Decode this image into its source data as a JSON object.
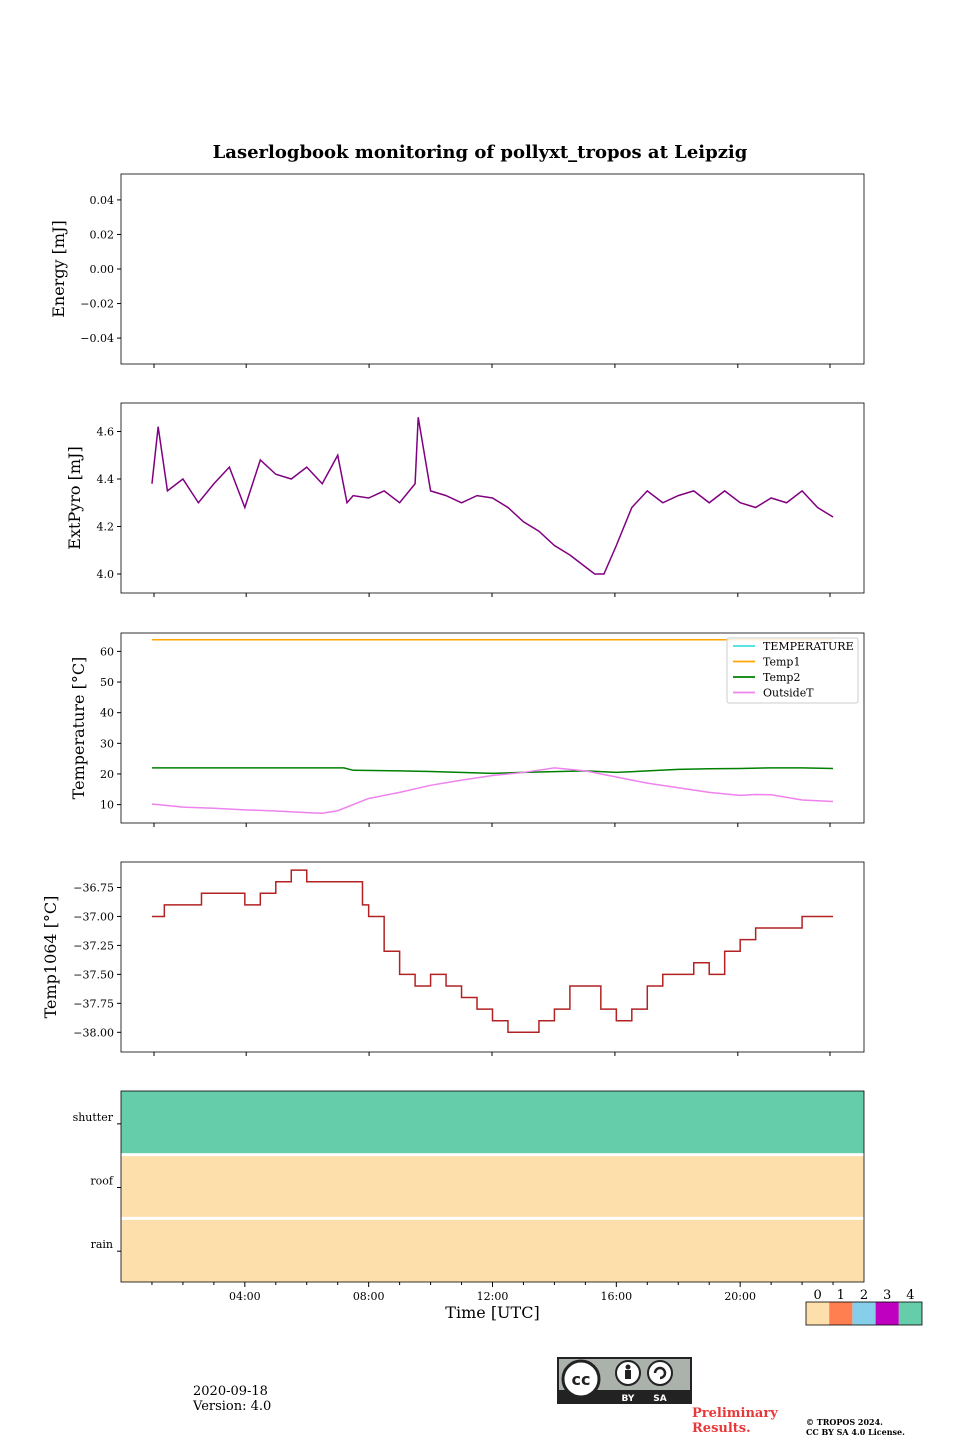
{
  "title": "Laserlogbook monitoring of pollyxt_tropos at Leipzig",
  "footer": {
    "date": "2020-09-18",
    "version": "Version: 4.0",
    "preliminary_line1": "Preliminary",
    "preliminary_line2": "Results.",
    "copyright_line1": "© TROPOS 2024.",
    "copyright_line2": "CC BY SA 4.0 License.",
    "cc_by": "BY",
    "cc_sa": "SA"
  },
  "chart_data": [
    {
      "type": "line",
      "ylabel": "Energy [mJ]",
      "ylim": [
        -0.055,
        0.055
      ],
      "yticks": [
        0.04,
        0.02,
        0.0,
        -0.02,
        -0.04
      ],
      "ytick_labels": [
        "0.04",
        "0.02",
        "0.00",
        "−0.02",
        "−0.04"
      ],
      "series": []
    },
    {
      "type": "line",
      "ylabel": "ExtPyro [mJ]",
      "ylim": [
        3.92,
        4.72
      ],
      "yticks": [
        4.6,
        4.4,
        4.2,
        4.0
      ],
      "ytick_labels": [
        "4.6",
        "4.4",
        "4.2",
        "4.0"
      ],
      "series": [
        {
          "name": "ExtPyro",
          "color": "#800080",
          "x": [
            1.0,
            1.2,
            1.5,
            2.0,
            2.5,
            3.0,
            3.5,
            4.0,
            4.5,
            5.0,
            5.5,
            6.0,
            6.5,
            7.0,
            7.3,
            7.5,
            8.0,
            8.5,
            9.0,
            9.5,
            9.6,
            10.0,
            10.5,
            11.0,
            11.5,
            12.0,
            12.5,
            13.0,
            13.5,
            14.0,
            14.5,
            15.0,
            15.3,
            15.6,
            16.0,
            16.5,
            17.0,
            17.5,
            18.0,
            18.5,
            19.0,
            19.5,
            20.0,
            20.5,
            21.0,
            21.5,
            22.0,
            22.5,
            23.0
          ],
          "y": [
            4.38,
            4.62,
            4.35,
            4.4,
            4.3,
            4.38,
            4.45,
            4.28,
            4.48,
            4.42,
            4.4,
            4.45,
            4.38,
            4.5,
            4.3,
            4.33,
            4.32,
            4.35,
            4.3,
            4.38,
            4.66,
            4.35,
            4.33,
            4.3,
            4.33,
            4.32,
            4.28,
            4.22,
            4.18,
            4.12,
            4.08,
            4.03,
            4.0,
            4.0,
            4.12,
            4.28,
            4.35,
            4.3,
            4.33,
            4.35,
            4.3,
            4.35,
            4.3,
            4.28,
            4.32,
            4.3,
            4.35,
            4.28,
            4.24
          ]
        }
      ]
    },
    {
      "type": "line",
      "ylabel": "Temperature [°C]",
      "ylim": [
        4,
        66
      ],
      "yticks": [
        60,
        50,
        40,
        30,
        20,
        10
      ],
      "ytick_labels": [
        "60",
        "50",
        "40",
        "30",
        "20",
        "10"
      ],
      "legend": "top-right",
      "series": [
        {
          "name": "TEMPERATURE",
          "color": "#40e0e0",
          "x": [],
          "y": []
        },
        {
          "name": "Temp1",
          "color": "#ffa500",
          "x": [
            1.0,
            23.0
          ],
          "y": [
            63.8,
            63.8
          ]
        },
        {
          "name": "Temp2",
          "color": "#008000",
          "x": [
            1.0,
            3.0,
            5.0,
            7.2,
            7.5,
            9.0,
            10.0,
            12.0,
            13.0,
            15.0,
            16.0,
            17.0,
            18.0,
            19.0,
            20.0,
            21.0,
            22.0,
            23.0
          ],
          "y": [
            22.0,
            22.0,
            22.0,
            22.0,
            21.2,
            21.0,
            20.8,
            20.2,
            20.5,
            21.0,
            20.5,
            21.0,
            21.5,
            21.7,
            21.8,
            22.0,
            22.0,
            21.8
          ]
        },
        {
          "name": "OutsideT",
          "color": "#ee82ee",
          "x": [
            1.0,
            2.0,
            3.0,
            4.0,
            5.0,
            6.0,
            6.5,
            7.0,
            7.5,
            8.0,
            9.0,
            10.0,
            11.0,
            12.0,
            13.0,
            14.0,
            15.0,
            16.0,
            17.0,
            18.0,
            19.0,
            20.0,
            20.5,
            21.0,
            22.0,
            23.0
          ],
          "y": [
            10.2,
            9.2,
            8.8,
            8.3,
            7.9,
            7.4,
            7.2,
            8.0,
            10.0,
            12.0,
            14.0,
            16.3,
            18.0,
            19.5,
            20.5,
            22.0,
            21.0,
            19.0,
            17.0,
            15.5,
            14.0,
            13.0,
            13.3,
            13.2,
            11.5,
            11.0
          ]
        }
      ]
    },
    {
      "type": "line",
      "ylabel": "Temp1064 [°C]",
      "ylim": [
        -38.17,
        -36.53
      ],
      "yticks": [
        -36.75,
        -37.0,
        -37.25,
        -37.5,
        -37.75,
        -38.0
      ],
      "ytick_labels": [
        "−36.75",
        "−37.00",
        "−37.25",
        "−37.50",
        "−37.75",
        "−38.00"
      ],
      "series": [
        {
          "name": "Temp1064",
          "color": "#b22222",
          "x": [
            1.0,
            1.4,
            2.0,
            2.6,
            3.0,
            3.5,
            4.0,
            4.5,
            5.0,
            5.5,
            6.0,
            7.0,
            7.5,
            7.8,
            8.0,
            8.5,
            9.0,
            9.5,
            10.0,
            10.5,
            11.0,
            11.5,
            12.0,
            12.5,
            13.0,
            13.5,
            14.0,
            14.5,
            15.0,
            15.5,
            16.0,
            16.5,
            17.0,
            17.5,
            18.0,
            18.5,
            19.0,
            19.5,
            20.0,
            20.5,
            21.0,
            21.5,
            22.0,
            22.5,
            23.0
          ],
          "y": [
            -37.0,
            -36.9,
            -36.9,
            -36.8,
            -36.8,
            -36.8,
            -36.9,
            -36.8,
            -36.7,
            -36.6,
            -36.7,
            -36.7,
            -36.7,
            -36.9,
            -37.0,
            -37.3,
            -37.5,
            -37.6,
            -37.5,
            -37.6,
            -37.7,
            -37.8,
            -37.9,
            -38.0,
            -38.0,
            -37.9,
            -37.8,
            -37.6,
            -37.6,
            -37.8,
            -37.9,
            -37.8,
            -37.6,
            -37.5,
            -37.5,
            -37.4,
            -37.5,
            -37.3,
            -37.2,
            -37.1,
            -37.1,
            -37.1,
            -37.0,
            -37.0,
            -37.0
          ]
        }
      ]
    },
    {
      "type": "heatmap",
      "xlabel": "Time [UTC]",
      "xlim": [
        0,
        24
      ],
      "xticks": [
        4,
        8,
        12,
        16,
        20
      ],
      "xtick_labels": [
        "04:00",
        "08:00",
        "12:00",
        "16:00",
        "20:00"
      ],
      "rows": [
        "shutter",
        "roof",
        "rain"
      ],
      "values": [
        4,
        0,
        0
      ],
      "colorbar": {
        "labels": [
          "0",
          "1",
          "2",
          "3",
          "4"
        ],
        "colors": [
          "#fddfab",
          "#ff7f50",
          "#87ceeb",
          "#c000c0",
          "#66cdaa"
        ]
      }
    }
  ]
}
